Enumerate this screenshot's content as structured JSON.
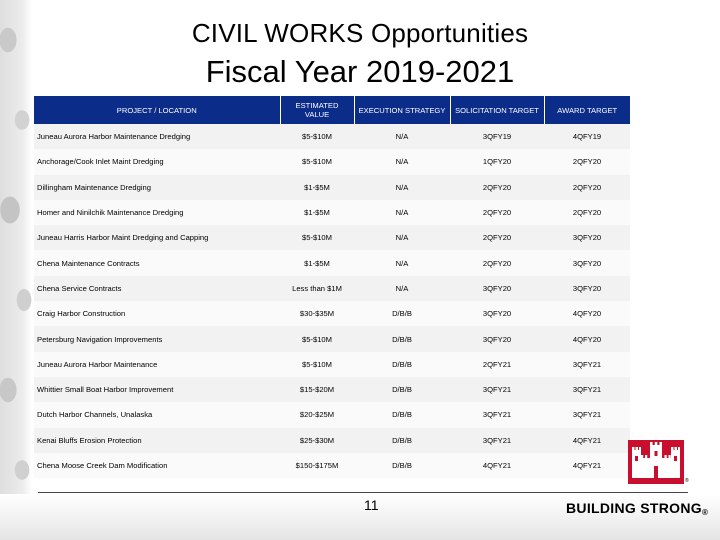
{
  "title": {
    "line1": "CIVIL WORKS Opportunities",
    "line2": "Fiscal Year 2019-2021"
  },
  "table": {
    "headers": [
      "PROJECT / LOCATION",
      "ESTIMATED VALUE",
      "EXECUTION STRATEGY",
      "SOLICITATION TARGET",
      "AWARD TARGET"
    ],
    "rows": [
      [
        "Juneau Aurora Harbor Maintenance Dredging",
        "$5-$10M",
        "N/A",
        "3QFY19",
        "4QFY19"
      ],
      [
        "Anchorage/Cook Inlet Maint Dredging",
        "$5-$10M",
        "N/A",
        "1QFY20",
        "2QFY20"
      ],
      [
        "Dillingham Maintenance Dredging",
        "$1-$5M",
        "N/A",
        "2QFY20",
        "2QFY20"
      ],
      [
        "Homer and Ninilchik Maintenance Dredging",
        "$1-$5M",
        "N/A",
        "2QFY20",
        "2QFY20"
      ],
      [
        "Juneau Harris Harbor Maint Dredging and Capping",
        "$5-$10M",
        "N/A",
        "2QFY20",
        "3QFY20"
      ],
      [
        "Chena Maintenance Contracts",
        "$1-$5M",
        "N/A",
        "2QFY20",
        "3QFY20"
      ],
      [
        "Chena Service Contracts",
        "Less than $1M",
        "N/A",
        "3QFY20",
        "3QFY20"
      ],
      [
        "Craig Harbor Construction",
        "$30-$35M",
        "D/B/B",
        "3QFY20",
        "4QFY20"
      ],
      [
        "Petersburg Navigation Improvements",
        "$5-$10M",
        "D/B/B",
        "3QFY20",
        "4QFY20"
      ],
      [
        "Juneau Aurora Harbor Maintenance",
        "$5-$10M",
        "D/B/B",
        "2QFY21",
        "3QFY21"
      ],
      [
        "Whittier Small Boat Harbor Improvement",
        "$15-$20M",
        "D/B/B",
        "3QFY21",
        "3QFY21"
      ],
      [
        "Dutch Harbor Channels, Unalaska",
        "$20-$25M",
        "D/B/B",
        "3QFY21",
        "3QFY21"
      ],
      [
        "Kenai Bluffs Erosion Protection",
        "$25-$30M",
        "D/B/B",
        "3QFY21",
        "4QFY21"
      ],
      [
        "Chena Moose Creek Dam Modification",
        "$150-$175M",
        "D/B/B",
        "4QFY21",
        "4QFY21"
      ]
    ]
  },
  "footer": {
    "page_number": "11",
    "tagline": "BUILDING STRONG",
    "reg_mark": "®",
    "tm_mark": "®"
  },
  "colors": {
    "header_bg": "#0b2c88",
    "castle_red": "#c8102e"
  },
  "icons": {
    "logo": "usace-castle-logo"
  }
}
